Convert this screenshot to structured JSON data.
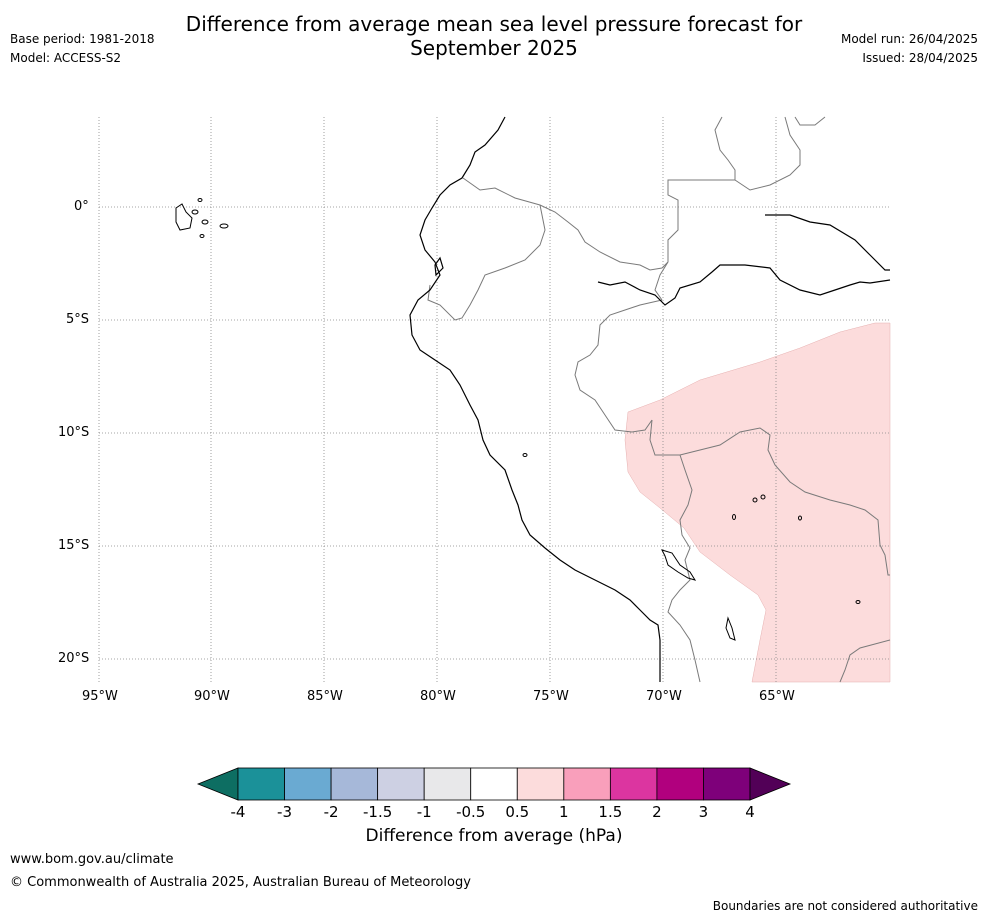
{
  "title_line1": "Difference from average mean sea level pressure forecast for",
  "title_line2": "September 2025",
  "base_period": "Base period: 1981-2018",
  "model": "Model: ACCESS-S2",
  "model_run": "Model run: 26/04/2025",
  "issued": "Issued: 28/04/2025",
  "lat_labels": [
    "0°",
    "5°S",
    "10°S",
    "15°S",
    "20°S"
  ],
  "lon_labels": [
    "95°W",
    "90°W",
    "85°W",
    "80°W",
    "75°W",
    "70°W",
    "65°W"
  ],
  "colorbar": {
    "title": "Difference from average (hPa)",
    "ticks": [
      "-4",
      "-3",
      "-2",
      "-1.5",
      "-1",
      "-0.5",
      "0.5",
      "1",
      "1.5",
      "2",
      "3",
      "4"
    ],
    "colors": [
      "#0d6e62",
      "#1b9199",
      "#6aaad2",
      "#a6b8d9",
      "#cdd0e3",
      "#e8e8ea",
      "#ffffff",
      "#fcdcdc",
      "#f99fbb",
      "#dc35a0",
      "#b1007e",
      "#7e007a",
      "#520057"
    ]
  },
  "footer_url": "www.bom.gov.au/climate",
  "footer_copyright": "© Commonwealth of Australia 2025, Australian Bureau of Meteorology",
  "footer_note": "Boundaries are not considered authoritative"
}
